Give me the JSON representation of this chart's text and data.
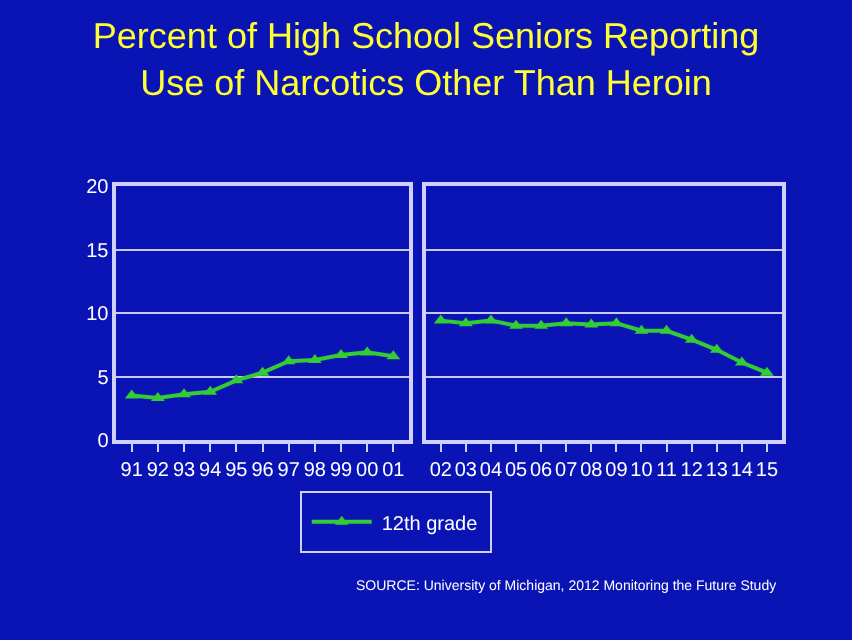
{
  "chart_data": [
    {
      "type": "line",
      "title": "Percent of High School Seniors Reporting\nUse of Narcotics Other Than Heroin",
      "categories": [
        "91",
        "92",
        "93",
        "94",
        "95",
        "96",
        "97",
        "98",
        "99",
        "00",
        "01"
      ],
      "series": [
        {
          "name": "12th grade",
          "color": "#33cc33",
          "values": [
            3.5,
            3.3,
            3.6,
            3.8,
            4.7,
            5.3,
            6.2,
            6.3,
            6.7,
            6.9,
            6.6
          ]
        }
      ],
      "ylim": [
        0,
        20
      ],
      "yticks": [
        0,
        5,
        10,
        15,
        20
      ],
      "grid": "y",
      "marker": "triangle",
      "legend": "bottom",
      "annotations": [
        "SOURCE: University of Michigan, 2012 Monitoring the Future Study"
      ]
    },
    {
      "type": "line",
      "categories": [
        "02",
        "03",
        "04",
        "05",
        "06",
        "07",
        "08",
        "09",
        "10",
        "11",
        "12",
        "13",
        "14",
        "15"
      ],
      "series": [
        {
          "color": "#33cc33",
          "values": [
            9.4,
            9.2,
            9.4,
            9.0,
            9.0,
            9.2,
            9.1,
            9.2,
            8.6,
            8.6,
            7.9,
            7.1,
            6.1,
            5.3
          ]
        }
      ],
      "ylim": [
        0,
        20
      ],
      "yticks": [
        0,
        5,
        10,
        15,
        20
      ],
      "grid": "y",
      "marker": "triangle",
      "tick_labels": "x"
    }
  ]
}
